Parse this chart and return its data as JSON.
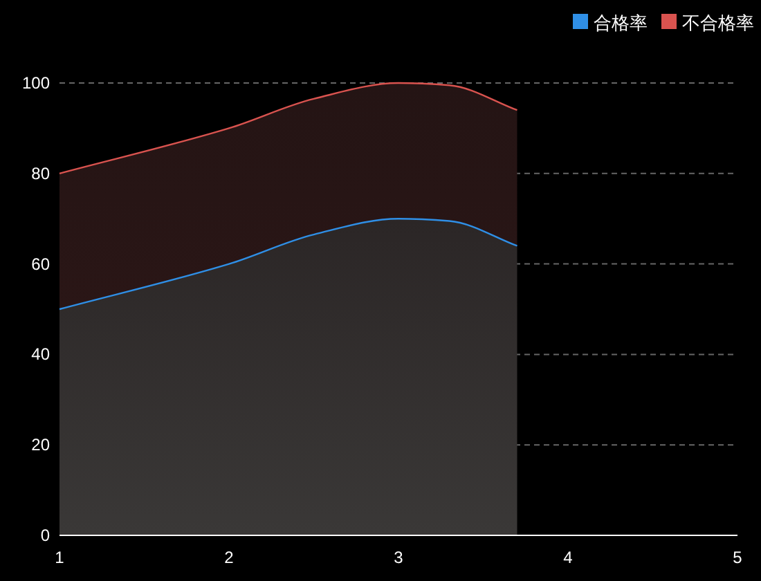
{
  "chart_data": {
    "type": "area",
    "stacked": true,
    "x": [
      1,
      2,
      2.5,
      3,
      3.3,
      3.7
    ],
    "series": [
      {
        "name": "合格率",
        "color": "#2f8fe6",
        "values": [
          50,
          60,
          66.5,
          70,
          69.5,
          64
        ]
      },
      {
        "name": "不合格率",
        "color": "#d9534f",
        "values": [
          30,
          30,
          30,
          30,
          30,
          30
        ]
      }
    ],
    "xlim": [
      1,
      5
    ],
    "xticks": [
      1,
      2,
      3,
      4,
      5
    ],
    "ylim": [
      0,
      100
    ],
    "yticks": [
      0,
      20,
      40,
      60,
      80,
      100
    ],
    "grid": "y",
    "legend": "top right"
  }
}
